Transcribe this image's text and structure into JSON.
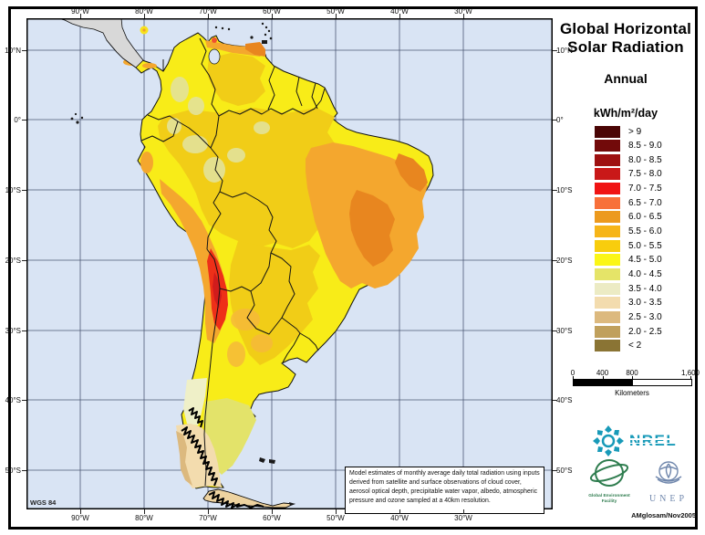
{
  "header": {
    "title_line1": "Global Horizontal",
    "title_line2": "Solar Radiation",
    "subtitle": "Annual",
    "units_label": "kWh/m²/day"
  },
  "legend": {
    "items": [
      {
        "label": "> 9",
        "color": "#4a0505"
      },
      {
        "label": "8.5 - 9.0",
        "color": "#720a0a"
      },
      {
        "label": "8.0 - 8.5",
        "color": "#9e1010"
      },
      {
        "label": "7.5 - 8.0",
        "color": "#c91818"
      },
      {
        "label": "7.0 - 7.5",
        "color": "#f01414"
      },
      {
        "label": "6.5 - 7.0",
        "color": "#f8703a"
      },
      {
        "label": "6.0 - 6.5",
        "color": "#ec9a1e"
      },
      {
        "label": "5.5 - 6.0",
        "color": "#f6b519"
      },
      {
        "label": "5.0 - 5.5",
        "color": "#f8cd0d"
      },
      {
        "label": "4.5 - 5.0",
        "color": "#fbf616"
      },
      {
        "label": "4.0 - 4.5",
        "color": "#e5e468"
      },
      {
        "label": "3.5 - 4.0",
        "color": "#ecebc4"
      },
      {
        "label": "3.0 - 3.5",
        "color": "#f3dcae"
      },
      {
        "label": "2.5 - 3.0",
        "color": "#dcb97e"
      },
      {
        "label": "2.0 - 2.5",
        "color": "#c0a05c"
      },
      {
        "label": "< 2",
        "color": "#8a7434"
      }
    ]
  },
  "scalebar": {
    "tick_labels": [
      "0",
      "400",
      "800",
      "1,600"
    ],
    "unit_label": "Kilometers"
  },
  "map": {
    "lon_labels": [
      "90°W",
      "80°W",
      "70°W",
      "60°W",
      "50°W",
      "40°W",
      "30°W"
    ],
    "lat_labels": [
      "10°N",
      "0°",
      "10°S",
      "20°S",
      "30°S",
      "40°S",
      "50°S"
    ],
    "projection_label": "WGS 84",
    "note": "Model estimates of monthly average daily total radiation using inputs derived from satellite and surface observations of cloud cover, aerosol optical depth, precipitable water vapor, albedo, atmospheric pressure and ozone sampled at a 40km resolution."
  },
  "logos": {
    "nrel_text": "NREL",
    "gef_line1": "Global Environment",
    "gef_line2": "Facility",
    "unep_text": "UNEP"
  },
  "credit": "AMglosam/Nov2005",
  "colors": {
    "ocean": "#d9e4f4",
    "no_data_land": "#d8d8d8",
    "grid": "#4d5875"
  }
}
